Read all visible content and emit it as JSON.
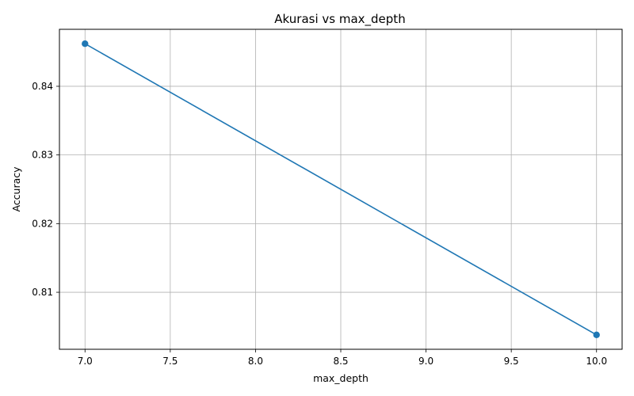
{
  "chart_data": {
    "type": "line",
    "title": "Akurasi vs max_depth",
    "xlabel": "max_depth",
    "ylabel": "Accuracy",
    "x": [
      7,
      10
    ],
    "series": [
      {
        "values": [
          0.8462,
          0.8038
        ],
        "color": "#1f77b4",
        "marker": "circle"
      }
    ],
    "xlim": [
      6.85,
      10.15
    ],
    "ylim": [
      0.8017,
      0.8483
    ],
    "xticks": [
      7.0,
      7.5,
      8.0,
      8.5,
      9.0,
      9.5,
      10.0
    ],
    "xtick_labels": [
      "7.0",
      "7.5",
      "8.0",
      "8.5",
      "9.0",
      "9.5",
      "10.0"
    ],
    "yticks": [
      0.81,
      0.82,
      0.83,
      0.84
    ],
    "ytick_labels": [
      "0.81",
      "0.82",
      "0.83",
      "0.84"
    ],
    "grid": true,
    "legend": "none"
  }
}
